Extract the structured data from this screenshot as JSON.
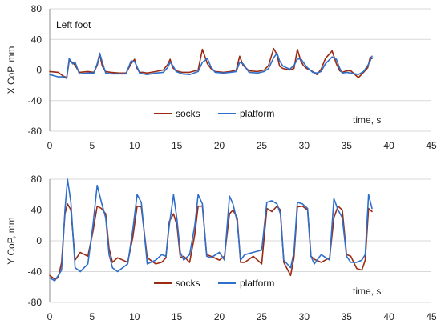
{
  "chart_data": [
    {
      "type": "line",
      "annotation": "Left foot",
      "ylabel": "X CoP, mm",
      "xlabel": "time, s",
      "xlim": [
        0,
        45
      ],
      "ylim": [
        -80,
        80
      ],
      "xticks": [
        0,
        5,
        10,
        15,
        20,
        25,
        30,
        35,
        40,
        45
      ],
      "yticks": [
        -80,
        -40,
        0,
        40,
        80
      ],
      "grid": "horizontal",
      "legend": "bottom-center",
      "series": [
        {
          "name": "socks",
          "color": "#9b2a12",
          "x": [
            0,
            1,
            1.6,
            2,
            2.3,
            2.7,
            3,
            3.5,
            4.5,
            5.2,
            5.6,
            5.9,
            6.2,
            6.6,
            7.2,
            8.2,
            9,
            9.6,
            10,
            10.3,
            10.6,
            11,
            11.5,
            12.5,
            13.4,
            13.9,
            14.2,
            14.5,
            14.9,
            15.6,
            16.5,
            17.5,
            18,
            18.6,
            19,
            19.5,
            20.5,
            21.3,
            22,
            22.4,
            22.8,
            23.5,
            24.5,
            25.3,
            25.8,
            26.4,
            26.8,
            27.1,
            27.5,
            28.3,
            28.8,
            29.2,
            29.6,
            29.9,
            30.3,
            31,
            31.5,
            32,
            32.5,
            33.3,
            33.8,
            34.2,
            34.5,
            35,
            35.5,
            36.4,
            37,
            37.5,
            37.8,
            38
          ],
          "values": [
            -2,
            -3,
            -8,
            -10,
            12,
            10,
            6,
            -3,
            -2,
            -3,
            6,
            20,
            5,
            -2,
            -3,
            -4,
            -4,
            8,
            14,
            2,
            -3,
            -3,
            -4,
            -2,
            0,
            7,
            14,
            3,
            -1,
            -3,
            -3,
            0,
            27,
            8,
            2,
            -2,
            -3,
            -2,
            0,
            18,
            6,
            -1,
            -2,
            0,
            6,
            28,
            20,
            5,
            2,
            0,
            2,
            27,
            12,
            6,
            2,
            -2,
            -6,
            1,
            15,
            25,
            8,
            -1,
            -3,
            -1,
            -1,
            -10,
            -3,
            3,
            17,
            15
          ]
        },
        {
          "name": "platform",
          "color": "#2e6fcc",
          "x": [
            0,
            1,
            1.6,
            2,
            2.3,
            2.7,
            3,
            3.5,
            4.5,
            5.2,
            5.6,
            5.9,
            6.2,
            6.6,
            7.2,
            8.2,
            9,
            9.6,
            10,
            10.3,
            10.6,
            11,
            11.5,
            12.5,
            13.4,
            13.9,
            14.2,
            14.5,
            14.9,
            15.6,
            16.5,
            17.5,
            18,
            18.6,
            19,
            19.5,
            20.5,
            21.3,
            22,
            22.4,
            22.8,
            23.5,
            24.5,
            25.3,
            25.8,
            26.4,
            26.8,
            27.1,
            27.5,
            28.3,
            28.8,
            29.2,
            29.6,
            29.9,
            30.3,
            31,
            31.5,
            32,
            32.5,
            33.3,
            33.8,
            34.2,
            34.5,
            35,
            35.5,
            36.4,
            37,
            37.5,
            37.8,
            38
          ],
          "values": [
            -6,
            -9,
            -9,
            -11,
            15,
            8,
            10,
            -5,
            -4,
            -4,
            8,
            22,
            10,
            -4,
            -5,
            -5,
            -5,
            12,
            11,
            4,
            -4,
            -5,
            -6,
            -4,
            -3,
            3,
            10,
            6,
            -2,
            -5,
            -6,
            -2,
            10,
            15,
            4,
            -3,
            -4,
            -3,
            -2,
            10,
            8,
            -3,
            -4,
            -2,
            2,
            16,
            22,
            12,
            5,
            1,
            6,
            14,
            15,
            10,
            4,
            -3,
            -4,
            -2,
            8,
            17,
            14,
            2,
            -4,
            -3,
            -4,
            -6,
            -2,
            6,
            12,
            18
          ]
        }
      ]
    },
    {
      "type": "line",
      "ylabel": "Y CoP, mm",
      "xlabel": "time, s",
      "xlim": [
        0,
        45
      ],
      "ylim": [
        -80,
        80
      ],
      "xticks": [
        0,
        5,
        10,
        15,
        20,
        25,
        30,
        35,
        40,
        45
      ],
      "yticks": [
        -80,
        -40,
        0,
        40,
        80
      ],
      "grid": "horizontal",
      "legend": "bottom-center",
      "series": [
        {
          "name": "socks",
          "color": "#9b2a12",
          "x": [
            0,
            0.6,
            1,
            1.4,
            1.8,
            2.1,
            2.5,
            3,
            3.6,
            4.5,
            5.1,
            5.6,
            6.1,
            6.6,
            7,
            7.4,
            8,
            9.2,
            9.8,
            10.3,
            10.8,
            11.5,
            12.5,
            13.2,
            13.7,
            14.1,
            14.6,
            15,
            15.4,
            15.8,
            16.5,
            17.1,
            17.5,
            18,
            18.5,
            19,
            20,
            20.6,
            21.2,
            21.6,
            22.1,
            22.5,
            23,
            24,
            25,
            25.6,
            26.2,
            26.8,
            27.2,
            27.6,
            28.4,
            28.8,
            29.2,
            29.8,
            30.4,
            30.8,
            31.2,
            32,
            33,
            33.5,
            34,
            34.5,
            35,
            35.5,
            36.2,
            36.8,
            37.2,
            37.6,
            38
          ],
          "values": [
            -45,
            -50,
            -48,
            -28,
            35,
            48,
            40,
            -25,
            -15,
            -20,
            12,
            45,
            42,
            35,
            -10,
            -28,
            -22,
            -28,
            5,
            45,
            44,
            -22,
            -30,
            -28,
            -22,
            25,
            35,
            20,
            -22,
            -20,
            -28,
            8,
            45,
            45,
            -18,
            -20,
            -25,
            -20,
            35,
            40,
            30,
            -28,
            -28,
            -20,
            -30,
            42,
            38,
            45,
            40,
            -28,
            -45,
            -22,
            44,
            45,
            40,
            -20,
            -24,
            -28,
            -22,
            30,
            45,
            40,
            -18,
            -20,
            -36,
            -38,
            -25,
            42,
            38
          ]
        },
        {
          "name": "platform",
          "color": "#2e6fcc",
          "x": [
            0,
            0.6,
            1,
            1.4,
            1.8,
            2.1,
            2.5,
            3,
            3.6,
            4.5,
            5.1,
            5.6,
            6.1,
            6.6,
            7,
            7.4,
            8,
            9.2,
            9.8,
            10.3,
            10.8,
            11.5,
            12.5,
            13.2,
            13.7,
            14.1,
            14.6,
            15,
            15.4,
            15.8,
            16.5,
            17.1,
            17.5,
            18,
            18.5,
            19,
            20,
            20.6,
            21.2,
            21.6,
            22.1,
            22.5,
            23,
            24,
            25,
            25.6,
            26.2,
            26.8,
            27.2,
            27.6,
            28.4,
            28.8,
            29.2,
            29.8,
            30.4,
            30.8,
            31.2,
            32,
            33,
            33.5,
            34,
            34.5,
            35,
            35.5,
            36.2,
            36.8,
            37.2,
            37.6,
            38
          ],
          "values": [
            -48,
            -52,
            -45,
            -38,
            40,
            80,
            50,
            -35,
            -40,
            -30,
            20,
            72,
            50,
            30,
            -18,
            -35,
            -40,
            -30,
            15,
            60,
            50,
            -30,
            -25,
            -18,
            -20,
            20,
            60,
            28,
            -15,
            -25,
            -18,
            20,
            60,
            48,
            -20,
            -22,
            -15,
            -25,
            58,
            48,
            25,
            -25,
            -18,
            -15,
            -12,
            50,
            52,
            48,
            35,
            -25,
            -35,
            -15,
            50,
            48,
            42,
            -20,
            -30,
            -18,
            -25,
            55,
            40,
            30,
            -20,
            -28,
            -28,
            -25,
            -18,
            60,
            42
          ]
        }
      ]
    }
  ]
}
